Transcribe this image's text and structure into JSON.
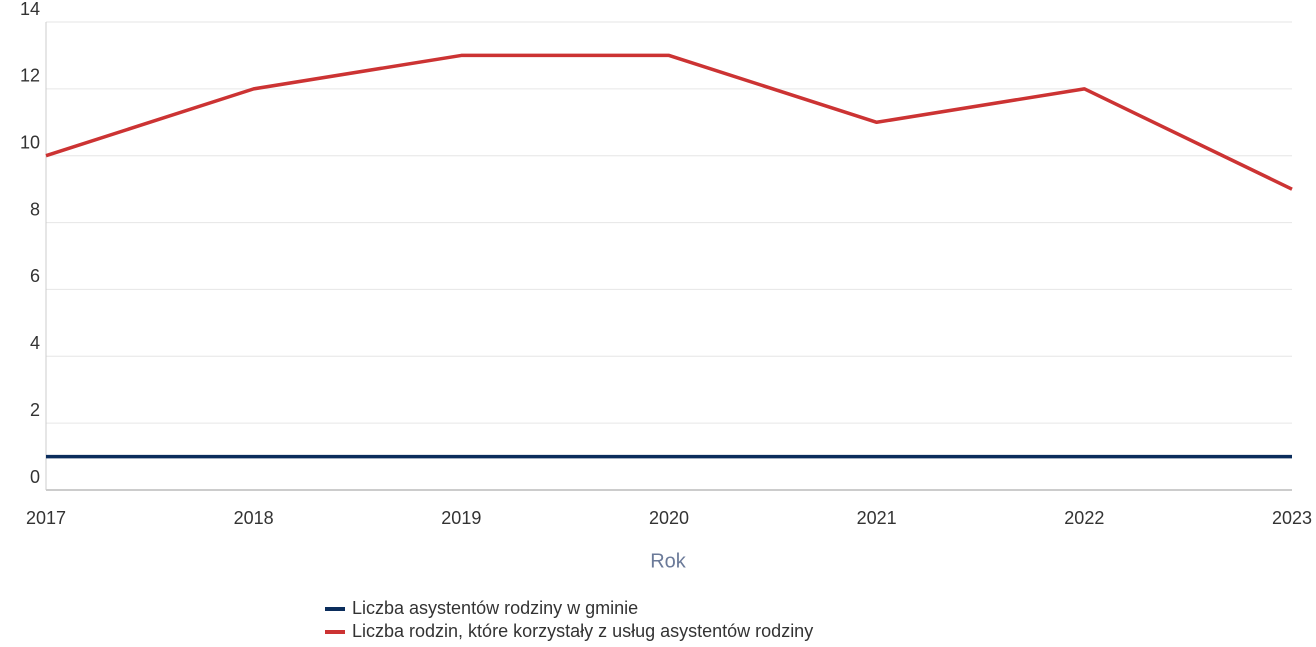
{
  "chart_data": {
    "type": "line",
    "categories": [
      "2017",
      "2018",
      "2019",
      "2020",
      "2021",
      "2022",
      "2023"
    ],
    "series": [
      {
        "name": "Liczba asystentów rodziny w gminie",
        "color": "#0b2d5c",
        "values": [
          1,
          1,
          1,
          1,
          1,
          1,
          1
        ]
      },
      {
        "name": "Liczba rodzin, które korzystały z usług asystentów rodziny",
        "color": "#cc3333",
        "values": [
          10,
          12,
          13,
          13,
          11,
          12,
          9
        ]
      }
    ],
    "x_label": "Rok",
    "ylim": [
      0,
      14
    ],
    "yticks": [
      0,
      2,
      4,
      6,
      8,
      10,
      12,
      14
    ],
    "grid": true
  }
}
